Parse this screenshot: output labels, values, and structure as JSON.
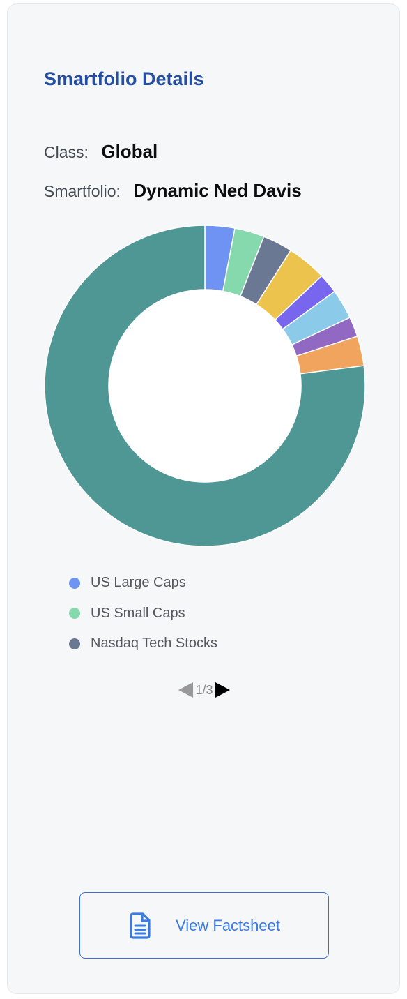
{
  "card": {
    "title": "Smartfolio Details",
    "class_label": "Class:",
    "class_value": "Global",
    "smartfolio_label": "Smartfolio:",
    "smartfolio_value": "Dynamic Ned Davis"
  },
  "chart_data": {
    "type": "pie",
    "donut": true,
    "slices": [
      {
        "name": "US Large Caps",
        "value": 3,
        "color": "#6f93f2"
      },
      {
        "name": "US Small Caps",
        "value": 3,
        "color": "#86d8ad"
      },
      {
        "name": "Nasdaq Tech Stocks",
        "value": 3,
        "color": "#6b7893"
      },
      {
        "value": 4,
        "color": "#ecc44d"
      },
      {
        "value": 2,
        "color": "#7866ef"
      },
      {
        "value": 3,
        "color": "#8bcbe9"
      },
      {
        "value": 2,
        "color": "#9169c3"
      },
      {
        "value": 3,
        "color": "#f1a45e"
      },
      {
        "value": 77,
        "color": "#4f9795"
      }
    ],
    "legend_position": "bottom",
    "legend_visible": [
      "US Large Caps",
      "US Small Caps",
      "Nasdaq Tech Stocks"
    ]
  },
  "legend": {
    "items": [
      {
        "label": "US Large Caps",
        "color": "#6f93f2"
      },
      {
        "label": "US Small Caps",
        "color": "#86d8ad"
      },
      {
        "label": "Nasdaq Tech Stocks",
        "color": "#6b7893"
      }
    ]
  },
  "pager": {
    "text": "1/3",
    "prev_icon": "triangle-left-icon",
    "next_icon": "triangle-right-icon"
  },
  "button": {
    "label": "View Factsheet",
    "icon": "document-icon",
    "border_color": "#3a6fd6",
    "text_color": "#3a7be2"
  },
  "colors": {
    "title": "#244ea0",
    "card_background": "#f6f7f9"
  }
}
